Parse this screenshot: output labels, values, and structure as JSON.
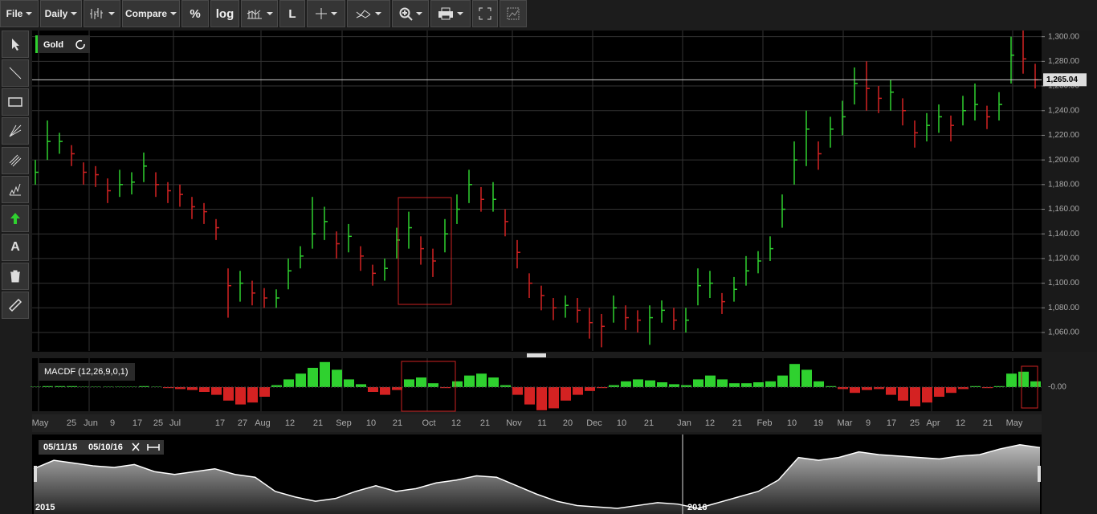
{
  "toolbar": {
    "file": "File",
    "period": "Daily",
    "compare": "Compare",
    "percent": "%",
    "log": "log",
    "line_tool": "L"
  },
  "left_tools": {
    "text_tool": "A"
  },
  "chart": {
    "symbol": "Gold",
    "ylim": [
      1045,
      1305
    ],
    "yticks": [
      {
        "value": 1060,
        "label": "1,060.00"
      },
      {
        "value": 1080,
        "label": "1,080.00"
      },
      {
        "value": 1100,
        "label": "1,100.00"
      },
      {
        "value": 1120,
        "label": "1,120.00"
      },
      {
        "value": 1140,
        "label": "1,140.00"
      },
      {
        "value": 1160,
        "label": "1,160.00"
      },
      {
        "value": 1180,
        "label": "1,180.00"
      },
      {
        "value": 1200,
        "label": "1,200.00"
      },
      {
        "value": 1220,
        "label": "1,220.00"
      },
      {
        "value": 1240,
        "label": "1,240.00"
      },
      {
        "value": 1260,
        "label": "1,260.00"
      },
      {
        "value": 1280,
        "label": "1,280.00"
      },
      {
        "value": 1300,
        "label": "1,300.00"
      }
    ],
    "last_price": {
      "value": 1265.04,
      "label": "1,265.04"
    },
    "x_labels": [
      "May",
      "25",
      "Jun",
      "9",
      "17",
      "25",
      "Jul",
      "17",
      "27",
      "Aug",
      "12",
      "21",
      "Sep",
      "10",
      "21",
      "Oct",
      "12",
      "21",
      "Nov",
      "11",
      "20",
      "Dec",
      "10",
      "21",
      "Jan",
      "12",
      "21",
      "Feb",
      "10",
      "19",
      "Mar",
      "9",
      "17",
      "25",
      "Apr",
      "12",
      "21",
      "May"
    ],
    "up_color": "#2fd12f",
    "down_color": "#d42222",
    "closes": [
      1190,
      1215,
      1215,
      1205,
      1190,
      1188,
      1175,
      1180,
      1182,
      1195,
      1180,
      1175,
      1172,
      1162,
      1158,
      1145,
      1098,
      1100,
      1092,
      1088,
      1088,
      1110,
      1122,
      1140,
      1150,
      1132,
      1138,
      1122,
      1108,
      1112,
      1135,
      1145,
      1128,
      1118,
      1140,
      1160,
      1180,
      1168,
      1168,
      1150,
      1125,
      1100,
      1090,
      1080,
      1082,
      1078,
      1068,
      1065,
      1080,
      1072,
      1070,
      1072,
      1078,
      1070,
      1070,
      1098,
      1100,
      1085,
      1095,
      1110,
      1118,
      1128,
      1160,
      1200,
      1225,
      1205,
      1225,
      1235,
      1262,
      1258,
      1250,
      1255,
      1240,
      1222,
      1228,
      1235,
      1228,
      1240,
      1245,
      1235,
      1245,
      1285,
      1282,
      1265
    ],
    "highs": [
      1200,
      1232,
      1222,
      1212,
      1198,
      1195,
      1185,
      1192,
      1190,
      1206,
      1190,
      1182,
      1180,
      1170,
      1165,
      1152,
      1112,
      1110,
      1102,
      1096,
      1095,
      1120,
      1130,
      1170,
      1162,
      1142,
      1148,
      1130,
      1115,
      1120,
      1145,
      1158,
      1138,
      1128,
      1152,
      1172,
      1192,
      1178,
      1182,
      1160,
      1135,
      1108,
      1098,
      1088,
      1090,
      1088,
      1080,
      1075,
      1090,
      1082,
      1078,
      1082,
      1086,
      1080,
      1080,
      1112,
      1110,
      1092,
      1105,
      1122,
      1126,
      1138,
      1172,
      1215,
      1240,
      1215,
      1235,
      1248,
      1275,
      1280,
      1260,
      1265,
      1250,
      1232,
      1238,
      1245,
      1236,
      1252,
      1262,
      1244,
      1255,
      1300,
      1305,
      1278
    ],
    "lows": [
      1180,
      1200,
      1205,
      1195,
      1180,
      1178,
      1165,
      1170,
      1172,
      1182,
      1170,
      1165,
      1162,
      1152,
      1148,
      1135,
      1072,
      1085,
      1082,
      1080,
      1080,
      1095,
      1112,
      1128,
      1135,
      1120,
      1125,
      1110,
      1098,
      1102,
      1120,
      1128,
      1115,
      1105,
      1125,
      1148,
      1165,
      1158,
      1158,
      1138,
      1112,
      1088,
      1078,
      1070,
      1072,
      1068,
      1055,
      1048,
      1068,
      1062,
      1060,
      1050,
      1068,
      1062,
      1060,
      1082,
      1088,
      1075,
      1085,
      1098,
      1108,
      1118,
      1145,
      1180,
      1195,
      1192,
      1210,
      1220,
      1245,
      1240,
      1238,
      1240,
      1228,
      1210,
      1215,
      1222,
      1215,
      1228,
      1232,
      1225,
      1232,
      1262,
      1270,
      1258
    ]
  },
  "indicator": {
    "title": "MACDF (12,26,9,0,1)",
    "zero_tick": {
      "value": 0,
      "label": "-0.00"
    },
    "ylim": [
      -25,
      30
    ],
    "values": [
      0.5,
      1,
      1,
      1,
      0.5,
      0.5,
      0.5,
      0.5,
      0.5,
      1,
      0.5,
      -1,
      -2,
      -3,
      -5,
      -8,
      -14,
      -18,
      -16,
      -10,
      2,
      8,
      14,
      20,
      26,
      18,
      8,
      3,
      -5,
      -8,
      -3,
      8,
      10,
      4,
      -1,
      6,
      12,
      14,
      10,
      2,
      -8,
      -18,
      -24,
      -22,
      -14,
      -8,
      -4,
      -1,
      2,
      6,
      8,
      7,
      5,
      3,
      2,
      8,
      12,
      8,
      4,
      4,
      5,
      6,
      12,
      24,
      18,
      6,
      1,
      -2,
      -6,
      -3,
      -2,
      -8,
      -14,
      -20,
      -16,
      -10,
      -6,
      -2,
      1,
      -1,
      1,
      14,
      16,
      6
    ]
  },
  "navigator": {
    "start_date": "05/11/15",
    "end_date": "05/10/16",
    "year_labels": [
      "2015",
      "2016"
    ],
    "ylim": [
      1040,
      1310
    ],
    "values": [
      1200,
      1230,
      1220,
      1210,
      1205,
      1215,
      1190,
      1180,
      1190,
      1200,
      1180,
      1170,
      1120,
      1100,
      1085,
      1095,
      1120,
      1140,
      1120,
      1130,
      1150,
      1160,
      1175,
      1170,
      1140,
      1110,
      1085,
      1070,
      1065,
      1060,
      1070,
      1080,
      1075,
      1060,
      1080,
      1100,
      1120,
      1160,
      1240,
      1230,
      1240,
      1260,
      1250,
      1245,
      1240,
      1235,
      1245,
      1250,
      1270,
      1285,
      1275
    ]
  }
}
